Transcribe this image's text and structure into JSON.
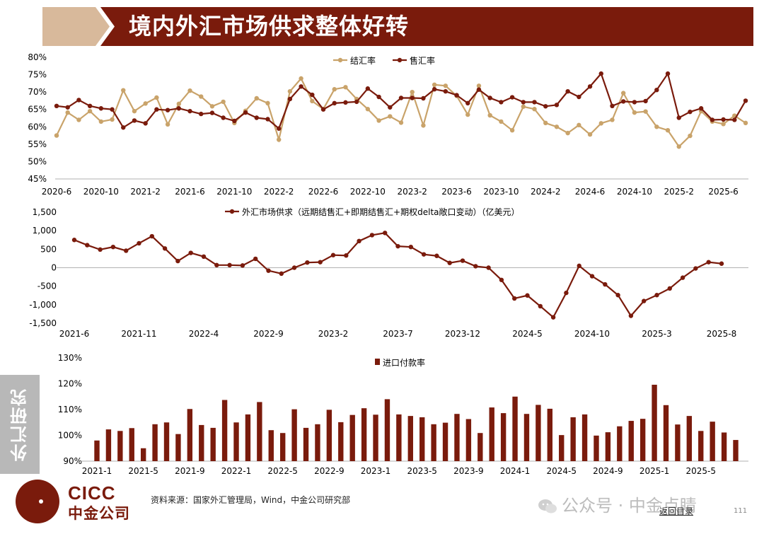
{
  "header": {
    "title": "境内外汇市场供求整体好转",
    "colors": {
      "band": "#7a1b0c",
      "accent": "#d8b99b"
    }
  },
  "side_tab": {
    "label": "外汇研究"
  },
  "footer": {
    "source": "资料来源：国家外汇管理局，Wind，中金公司研究部",
    "logo_en": "CICC",
    "logo_cn": "中金公司",
    "wechat": "公众号 · 中金点睛",
    "back": "返回目录",
    "page": "111"
  },
  "chart_data": [
    {
      "type": "line",
      "ylim": [
        0.45,
        0.8
      ],
      "y_ticks": [
        "45%",
        "50%",
        "55%",
        "60%",
        "65%",
        "70%",
        "75%",
        "80%"
      ],
      "x_tick_labels": [
        "2020-6",
        "2020-10",
        "2021-2",
        "2021-6",
        "2021-10",
        "2022-2",
        "2022-6",
        "2022-10",
        "2023-2",
        "2023-6",
        "2023-10",
        "2024-2",
        "2024-6",
        "2024-10",
        "2025-2",
        "2025-6"
      ],
      "x_start": "2020-6",
      "legend_position": "top",
      "series": [
        {
          "name": "结汇率",
          "color": "#c9a36a",
          "values": [
            0.575,
            0.641,
            0.62,
            0.645,
            0.615,
            0.621,
            0.705,
            0.645,
            0.667,
            0.684,
            0.607,
            0.666,
            0.704,
            0.687,
            0.659,
            0.672,
            0.611,
            0.646,
            0.682,
            0.668,
            0.563,
            0.702,
            0.739,
            0.674,
            0.651,
            0.708,
            0.714,
            0.68,
            0.651,
            0.618,
            0.63,
            0.612,
            0.7,
            0.604,
            0.721,
            0.718,
            0.689,
            0.635,
            0.718,
            0.633,
            0.615,
            0.59,
            0.658,
            0.651,
            0.611,
            0.6,
            0.582,
            0.605,
            0.578,
            0.61,
            0.62,
            0.697,
            0.641,
            0.644,
            0.6,
            0.59,
            0.543,
            0.574,
            0.645,
            0.615,
            0.608,
            0.632,
            0.611
          ]
        },
        {
          "name": "售汇率",
          "color": "#7a1b0c",
          "values": [
            0.66,
            0.656,
            0.677,
            0.66,
            0.653,
            0.65,
            0.598,
            0.618,
            0.61,
            0.65,
            0.648,
            0.653,
            0.645,
            0.637,
            0.64,
            0.626,
            0.617,
            0.641,
            0.626,
            0.622,
            0.595,
            0.68,
            0.716,
            0.692,
            0.65,
            0.668,
            0.67,
            0.672,
            0.71,
            0.686,
            0.656,
            0.683,
            0.683,
            0.682,
            0.708,
            0.702,
            0.691,
            0.668,
            0.707,
            0.683,
            0.671,
            0.685,
            0.671,
            0.671,
            0.659,
            0.663,
            0.702,
            0.686,
            0.716,
            0.753,
            0.66,
            0.673,
            0.671,
            0.674,
            0.706,
            0.753,
            0.626,
            0.643,
            0.653,
            0.62,
            0.621,
            0.62,
            0.675
          ]
        }
      ]
    },
    {
      "type": "line",
      "ylim": [
        -1500,
        1500
      ],
      "y_ticks": [
        "-1,500",
        "-1,000",
        "-500",
        "0",
        "500",
        "1,000",
        "1,500"
      ],
      "x_tick_labels": [
        "2021-6",
        "2021-11",
        "2022-4",
        "2022-9",
        "2023-2",
        "2023-7",
        "2023-12",
        "2024-5",
        "2024-10",
        "2025-3",
        "2025-8"
      ],
      "x_start": "2021-6",
      "legend_position": "top",
      "series": [
        {
          "name": "外汇市场供求（远期结售汇+即期结售汇+期权delta敞口变动）（亿美元）",
          "color": "#7a1b0c",
          "values": [
            750,
            610,
            490,
            560,
            460,
            660,
            850,
            520,
            180,
            400,
            300,
            70,
            70,
            60,
            240,
            -80,
            -160,
            0,
            140,
            150,
            340,
            330,
            720,
            880,
            940,
            580,
            560,
            360,
            320,
            130,
            190,
            40,
            0,
            -330,
            -830,
            -750,
            -1040,
            -1340,
            -680,
            50,
            -230,
            -450,
            -740,
            -1300,
            -900,
            -740,
            -560,
            -270,
            -20,
            150,
            110
          ]
        }
      ]
    },
    {
      "type": "bar",
      "ylim": [
        0.9,
        1.3
      ],
      "y_ticks": [
        "90%",
        "100%",
        "110%",
        "120%",
        "130%"
      ],
      "x_tick_labels": [
        "2021-1",
        "2021-5",
        "2021-9",
        "2022-1",
        "2022-5",
        "2022-9",
        "2023-1",
        "2023-5",
        "2023-9",
        "2024-1",
        "2024-5",
        "2024-9",
        "2025-1",
        "2025-5"
      ],
      "x_start": "2021-1",
      "legend_position": "top",
      "series": [
        {
          "name": "进口付款率",
          "color": "#7a1b0c",
          "values": [
            0.98,
            1.023,
            1.017,
            1.028,
            0.95,
            1.043,
            1.05,
            1.005,
            1.102,
            1.04,
            1.029,
            1.137,
            1.05,
            1.081,
            1.129,
            1.02,
            1.009,
            1.101,
            1.029,
            1.043,
            1.099,
            1.051,
            1.079,
            1.105,
            1.08,
            1.14,
            1.081,
            1.075,
            1.07,
            1.043,
            1.049,
            1.083,
            1.063,
            1.009,
            1.108,
            1.086,
            1.15,
            1.083,
            1.118,
            1.103,
            1.001,
            1.07,
            1.081,
            0.999,
            1.012,
            1.035,
            1.056,
            1.064,
            1.196,
            1.117,
            1.042,
            1.075,
            1.017,
            1.053,
            1.011,
            0.982
          ]
        }
      ]
    }
  ]
}
